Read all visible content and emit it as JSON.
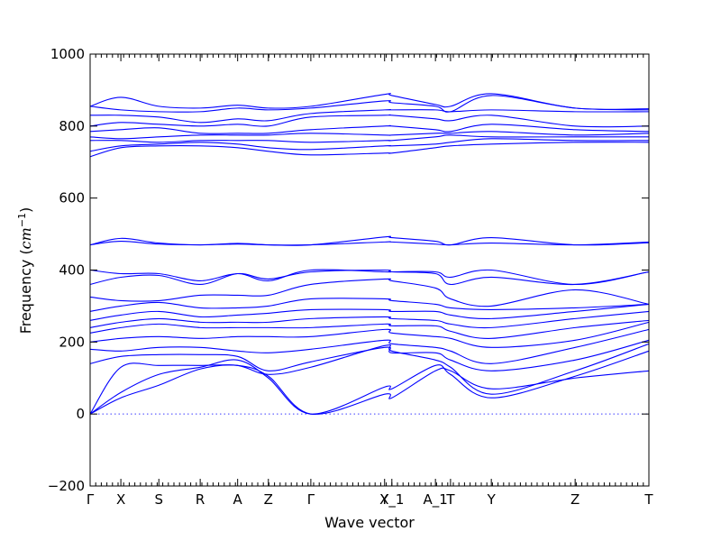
{
  "chart_data": {
    "type": "line",
    "xlabel": "Wave vector",
    "ylabel": "Frequency",
    "ylabel_unit": "cm",
    "ylabel_unit_exp": "−1",
    "ylim": [
      -200,
      1000
    ],
    "yticks": [
      -200,
      0,
      200,
      400,
      600,
      800,
      1000
    ],
    "xlim": [
      0,
      1
    ],
    "high_symmetry_points": [
      {
        "label": "Γ",
        "x": 0.0
      },
      {
        "label": "X",
        "x": 0.055
      },
      {
        "label": "S",
        "x": 0.123
      },
      {
        "label": "R",
        "x": 0.197
      },
      {
        "label": "A",
        "x": 0.264
      },
      {
        "label": "Z",
        "x": 0.319
      },
      {
        "label": "Γ",
        "x": 0.395
      },
      {
        "label": "Y",
        "x": 0.527
      },
      {
        "label": "X_1",
        "x": 0.54
      },
      {
        "label": "A_1",
        "x": 0.618
      },
      {
        "label": "T",
        "x": 0.645
      },
      {
        "label": "Y",
        "x": 0.718
      },
      {
        "label": "Z",
        "x": 0.868
      },
      {
        "label": "T",
        "x": 1.0
      }
    ],
    "zero_line": true,
    "line_color": "#0000ff",
    "bands": [
      {
        "x": [
          0,
          0.055,
          0.123,
          0.197,
          0.264,
          0.319,
          0.395,
          0.527,
          0.54,
          0.618,
          0.645,
          0.718,
          0.868,
          1.0
        ],
        "y": [
          0,
          45,
          80,
          125,
          135,
          105,
          0,
          55,
          45,
          120,
          120,
          70,
          100,
          120
        ]
      },
      {
        "x": [
          0,
          0.055,
          0.123,
          0.197,
          0.264,
          0.319,
          0.395,
          0.527,
          0.54,
          0.618,
          0.645,
          0.718,
          0.868,
          1.0
        ],
        "y": [
          0,
          60,
          110,
          130,
          150,
          100,
          0,
          75,
          70,
          135,
          110,
          45,
          105,
          175
        ]
      },
      {
        "x": [
          0,
          0.055,
          0.123,
          0.197,
          0.264,
          0.319,
          0.395,
          0.527,
          0.54,
          0.618,
          0.645,
          0.718,
          0.868,
          1.0
        ],
        "y": [
          0,
          130,
          135,
          135,
          135,
          110,
          130,
          190,
          175,
          150,
          130,
          55,
          120,
          195
        ]
      },
      {
        "x": [
          0,
          0.055,
          0.123,
          0.197,
          0.264,
          0.319,
          0.395,
          0.527,
          0.54,
          0.618,
          0.645,
          0.718,
          0.868,
          1.0
        ],
        "y": [
          140,
          160,
          165,
          165,
          160,
          120,
          145,
          185,
          170,
          170,
          150,
          120,
          150,
          205
        ]
      },
      {
        "x": [
          0,
          0.055,
          0.123,
          0.197,
          0.264,
          0.319,
          0.395,
          0.527,
          0.54,
          0.618,
          0.645,
          0.718,
          0.868,
          1.0
        ],
        "y": [
          180,
          175,
          185,
          185,
          175,
          170,
          180,
          205,
          195,
          185,
          175,
          140,
          185,
          235
        ]
      },
      {
        "x": [
          0,
          0.055,
          0.123,
          0.197,
          0.264,
          0.319,
          0.395,
          0.527,
          0.54,
          0.618,
          0.645,
          0.718,
          0.868,
          1.0
        ],
        "y": [
          200,
          210,
          215,
          210,
          215,
          215,
          215,
          235,
          225,
          215,
          210,
          185,
          205,
          255
        ]
      },
      {
        "x": [
          0,
          0.055,
          0.123,
          0.197,
          0.264,
          0.319,
          0.395,
          0.527,
          0.54,
          0.618,
          0.645,
          0.718,
          0.868,
          1.0
        ],
        "y": [
          225,
          240,
          250,
          240,
          240,
          240,
          240,
          250,
          245,
          245,
          230,
          210,
          240,
          260
        ]
      },
      {
        "x": [
          0,
          0.055,
          0.123,
          0.197,
          0.264,
          0.319,
          0.395,
          0.527,
          0.54,
          0.618,
          0.645,
          0.718,
          0.868,
          1.0
        ],
        "y": [
          240,
          255,
          265,
          255,
          255,
          255,
          265,
          270,
          265,
          260,
          250,
          240,
          265,
          285
        ]
      },
      {
        "x": [
          0,
          0.055,
          0.123,
          0.197,
          0.264,
          0.319,
          0.395,
          0.527,
          0.54,
          0.618,
          0.645,
          0.718,
          0.868,
          1.0
        ],
        "y": [
          260,
          275,
          285,
          270,
          275,
          280,
          290,
          290,
          285,
          285,
          275,
          265,
          285,
          305
        ]
      },
      {
        "x": [
          0,
          0.055,
          0.123,
          0.197,
          0.264,
          0.319,
          0.395,
          0.527,
          0.54,
          0.618,
          0.645,
          0.718,
          0.868,
          1.0
        ],
        "y": [
          285,
          300,
          310,
          295,
          295,
          300,
          320,
          320,
          315,
          305,
          295,
          290,
          295,
          305
        ]
      },
      {
        "x": [
          0,
          0.055,
          0.123,
          0.197,
          0.264,
          0.319,
          0.395,
          0.527,
          0.54,
          0.618,
          0.645,
          0.718,
          0.868,
          1.0
        ],
        "y": [
          325,
          315,
          315,
          330,
          330,
          330,
          360,
          375,
          370,
          350,
          320,
          300,
          345,
          305
        ]
      },
      {
        "x": [
          0,
          0.055,
          0.123,
          0.197,
          0.264,
          0.319,
          0.395,
          0.527,
          0.54,
          0.618,
          0.645,
          0.718,
          0.868,
          1.0
        ],
        "y": [
          360,
          380,
          385,
          360,
          390,
          375,
          395,
          400,
          395,
          390,
          360,
          380,
          360,
          395
        ]
      },
      {
        "x": [
          0,
          0.055,
          0.123,
          0.197,
          0.264,
          0.319,
          0.395,
          0.527,
          0.54,
          0.618,
          0.645,
          0.718,
          0.868,
          1.0
        ],
        "y": [
          400,
          390,
          390,
          370,
          390,
          370,
          400,
          395,
          395,
          395,
          380,
          400,
          360,
          395
        ]
      },
      {
        "x": [
          0,
          0.055,
          0.123,
          0.197,
          0.264,
          0.319,
          0.395,
          0.527,
          0.54,
          0.618,
          0.645,
          0.718,
          0.868,
          1.0
        ],
        "y": [
          470,
          480,
          472,
          470,
          472,
          470,
          470,
          478,
          478,
          472,
          470,
          475,
          470,
          478
        ]
      },
      {
        "x": [
          0,
          0.055,
          0.123,
          0.197,
          0.264,
          0.319,
          0.395,
          0.527,
          0.54,
          0.618,
          0.645,
          0.718,
          0.868,
          1.0
        ],
        "y": [
          470,
          488,
          475,
          470,
          474,
          470,
          470,
          492,
          490,
          480,
          470,
          490,
          470,
          476
        ]
      },
      {
        "x": [
          0,
          0.055,
          0.123,
          0.197,
          0.264,
          0.319,
          0.395,
          0.527,
          0.54,
          0.618,
          0.645,
          0.718,
          0.868,
          1.0
        ],
        "y": [
          715,
          740,
          745,
          745,
          740,
          730,
          720,
          725,
          725,
          740,
          745,
          750,
          755,
          755
        ]
      },
      {
        "x": [
          0,
          0.055,
          0.123,
          0.197,
          0.264,
          0.319,
          0.395,
          0.527,
          0.54,
          0.618,
          0.645,
          0.718,
          0.868,
          1.0
        ],
        "y": [
          730,
          745,
          750,
          755,
          750,
          740,
          735,
          745,
          745,
          750,
          755,
          765,
          760,
          760
        ]
      },
      {
        "x": [
          0,
          0.055,
          0.123,
          0.197,
          0.264,
          0.319,
          0.395,
          0.527,
          0.54,
          0.618,
          0.645,
          0.718,
          0.868,
          1.0
        ],
        "y": [
          760,
          760,
          755,
          760,
          760,
          760,
          755,
          760,
          760,
          770,
          775,
          770,
          770,
          770
        ]
      },
      {
        "x": [
          0,
          0.055,
          0.123,
          0.197,
          0.264,
          0.319,
          0.395,
          0.527,
          0.54,
          0.618,
          0.645,
          0.718,
          0.868,
          1.0
        ],
        "y": [
          770,
          765,
          770,
          775,
          775,
          775,
          780,
          775,
          775,
          780,
          780,
          785,
          775,
          780
        ]
      },
      {
        "x": [
          0,
          0.055,
          0.123,
          0.197,
          0.264,
          0.319,
          0.395,
          0.527,
          0.54,
          0.618,
          0.645,
          0.718,
          0.868,
          1.0
        ],
        "y": [
          785,
          790,
          795,
          780,
          780,
          780,
          790,
          800,
          800,
          790,
          785,
          805,
          790,
          785
        ]
      },
      {
        "x": [
          0,
          0.055,
          0.123,
          0.197,
          0.264,
          0.319,
          0.395,
          0.527,
          0.54,
          0.618,
          0.645,
          0.718,
          0.868,
          1.0
        ],
        "y": [
          800,
          810,
          805,
          800,
          805,
          800,
          825,
          830,
          830,
          820,
          815,
          830,
          800,
          800
        ]
      },
      {
        "x": [
          0,
          0.055,
          0.123,
          0.197,
          0.264,
          0.319,
          0.395,
          0.527,
          0.54,
          0.618,
          0.645,
          0.718,
          0.868,
          1.0
        ],
        "y": [
          830,
          830,
          825,
          810,
          820,
          815,
          835,
          845,
          845,
          845,
          840,
          845,
          840,
          840
        ]
      },
      {
        "x": [
          0,
          0.055,
          0.123,
          0.197,
          0.264,
          0.319,
          0.395,
          0.527,
          0.54,
          0.618,
          0.645,
          0.718,
          0.868,
          1.0
        ],
        "y": [
          855,
          845,
          840,
          840,
          850,
          845,
          850,
          870,
          865,
          855,
          840,
          885,
          850,
          845
        ]
      },
      {
        "x": [
          0,
          0.055,
          0.123,
          0.197,
          0.264,
          0.319,
          0.395,
          0.527,
          0.54,
          0.618,
          0.645,
          0.718,
          0.868,
          1.0
        ],
        "y": [
          855,
          880,
          855,
          850,
          858,
          850,
          855,
          888,
          885,
          860,
          855,
          890,
          850,
          848
        ]
      }
    ]
  }
}
